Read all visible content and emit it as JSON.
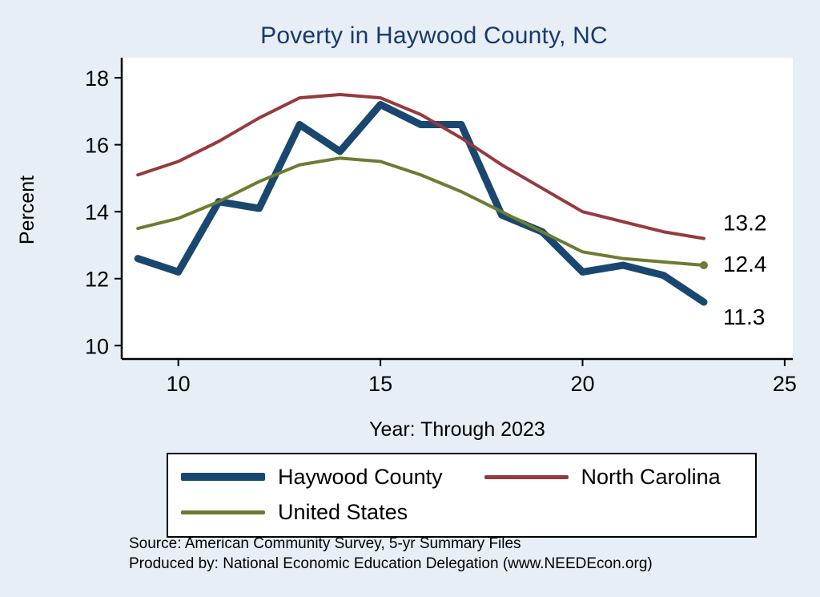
{
  "title": "Poverty in Haywood County, NC",
  "axes": {
    "y_label": "Percent",
    "x_label": "Year: Through 2023"
  },
  "footnote": {
    "line1": "Source: American Community Survey, 5-yr Summary Files",
    "line2": "Produced by: National Economic Education Delegation (www.NEEDEcon.org)"
  },
  "legend": {
    "position": "bottom",
    "items": [
      {
        "label": "Haywood County",
        "color": "#1a476f",
        "thickness": 10
      },
      {
        "label": "North Carolina",
        "color": "#953a3e",
        "thickness": 5
      },
      {
        "label": "United States",
        "color": "#6b7c32",
        "thickness": 5
      }
    ]
  },
  "colors": {
    "background": "#e7eef5",
    "plot_background": "#ffffff",
    "title": "#1a3a6b",
    "axis": "#000000",
    "tick_label": "#000000"
  },
  "chart_data": {
    "type": "line",
    "title": "Poverty in Haywood County, NC",
    "xlabel": "Year: Through 2023",
    "ylabel": "Percent",
    "x": [
      9,
      10,
      11,
      12,
      13,
      14,
      15,
      16,
      17,
      18,
      19,
      20,
      21,
      22,
      23
    ],
    "series": [
      {
        "name": "Haywood County",
        "color": "#1a476f",
        "width": 9,
        "values": [
          12.6,
          12.2,
          14.3,
          14.1,
          16.6,
          15.8,
          17.2,
          16.6,
          16.6,
          13.9,
          13.4,
          12.2,
          12.4,
          12.1,
          11.3
        ],
        "end_label": "11.3",
        "end_marker": false
      },
      {
        "name": "North Carolina",
        "color": "#953a3e",
        "width": 4,
        "values": [
          15.1,
          15.5,
          16.1,
          16.8,
          17.4,
          17.5,
          17.4,
          16.9,
          16.2,
          15.4,
          14.7,
          14.0,
          13.7,
          13.4,
          13.2
        ],
        "end_label": "13.2",
        "end_marker": false
      },
      {
        "name": "United States",
        "color": "#6b7c32",
        "width": 4,
        "values": [
          13.5,
          13.8,
          14.3,
          14.9,
          15.4,
          15.6,
          15.5,
          15.1,
          14.6,
          14.0,
          13.4,
          12.8,
          12.6,
          12.5,
          12.4
        ],
        "end_label": "12.4",
        "end_marker": true
      }
    ],
    "xticks": [
      10,
      15,
      20,
      25
    ],
    "yticks": [
      10,
      12,
      14,
      16,
      18
    ],
    "xlim": [
      8.6,
      25.2
    ],
    "ylim": [
      9.6,
      18.6
    ],
    "grid": false,
    "legend_position": "bottom"
  }
}
